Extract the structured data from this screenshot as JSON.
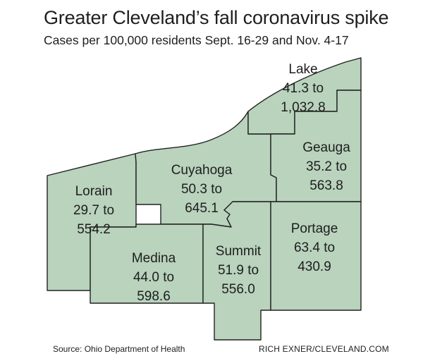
{
  "header": {
    "title": "Greater Cleveland’s fall coronavirus spike",
    "subtitle": "Cases per 100,000 residents Sept. 16-29 and Nov. 4-17"
  },
  "map": {
    "fill_color": "#b9d3bd",
    "border_color": "#222222",
    "counties": {
      "lake": {
        "name": "Lake",
        "range": "41.3 to",
        "value": "1,032.8"
      },
      "geauga": {
        "name": "Geauga",
        "range": "35.2 to",
        "value": "563.8"
      },
      "cuyahoga": {
        "name": "Cuyahoga",
        "range": "50.3 to",
        "value": "645.1"
      },
      "lorain": {
        "name": "Lorain",
        "range": "29.7 to",
        "value": "554.2"
      },
      "medina": {
        "name": "Medina",
        "range": "44.0 to",
        "value": "598.6"
      },
      "summit": {
        "name": "Summit",
        "range": "51.9 to",
        "value": "556.0"
      },
      "portage": {
        "name": "Portage",
        "range": "63.4 to",
        "value": "430.9"
      }
    }
  },
  "footer": {
    "source": "Source: Ohio Department of Health",
    "credit": "RICH EXNER/CLEVELAND.COM"
  }
}
